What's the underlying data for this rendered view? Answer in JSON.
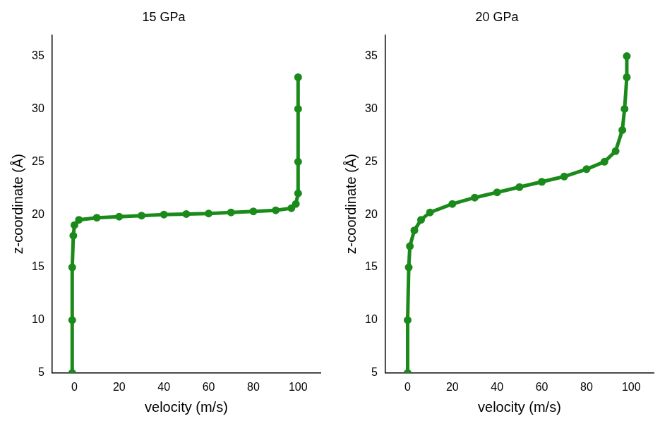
{
  "chart_data": [
    {
      "type": "line",
      "title": "15 GPa",
      "x_label": "velocity (m/s)",
      "y_label": "z-coordinate (Å)",
      "x": [
        -1,
        -1,
        -1,
        -0.5,
        0,
        2,
        10,
        20,
        30,
        40,
        50,
        60,
        70,
        80,
        90,
        97,
        99,
        100,
        100,
        100,
        100
      ],
      "values": [
        5,
        10,
        15,
        18,
        19,
        19.5,
        19.7,
        19.8,
        19.9,
        20,
        20.05,
        20.1,
        20.2,
        20.3,
        20.4,
        20.6,
        21,
        22,
        25,
        30,
        33
      ],
      "color": "#1a8a1a",
      "marker": "circle",
      "line_style": "solid",
      "xlim": [
        -10,
        110
      ],
      "ylim": [
        5,
        37
      ],
      "xticks": [
        0,
        20,
        40,
        60,
        80,
        100
      ],
      "yticks": [
        5,
        10,
        15,
        20,
        25,
        30,
        35
      ],
      "grid": false
    },
    {
      "type": "line",
      "title": "20 GPa",
      "x_label": "velocity (m/s)",
      "y_label": "z-coordinate (Å)",
      "x": [
        0,
        0,
        0.5,
        1,
        3,
        6,
        10,
        20,
        30,
        40,
        50,
        60,
        70,
        80,
        88,
        93,
        96,
        97,
        98,
        98
      ],
      "values": [
        5,
        10,
        15,
        17,
        18.5,
        19.5,
        20.2,
        21,
        21.6,
        22.1,
        22.6,
        23.1,
        23.6,
        24.3,
        25,
        26,
        28,
        30,
        33,
        35
      ],
      "color": "#1a8a1a",
      "marker": "circle",
      "line_style": "solid",
      "xlim": [
        -10,
        110
      ],
      "ylim": [
        5,
        37
      ],
      "xticks": [
        0,
        20,
        40,
        60,
        80,
        100
      ],
      "yticks": [
        5,
        10,
        15,
        20,
        25,
        30,
        35
      ],
      "grid": false
    }
  ]
}
